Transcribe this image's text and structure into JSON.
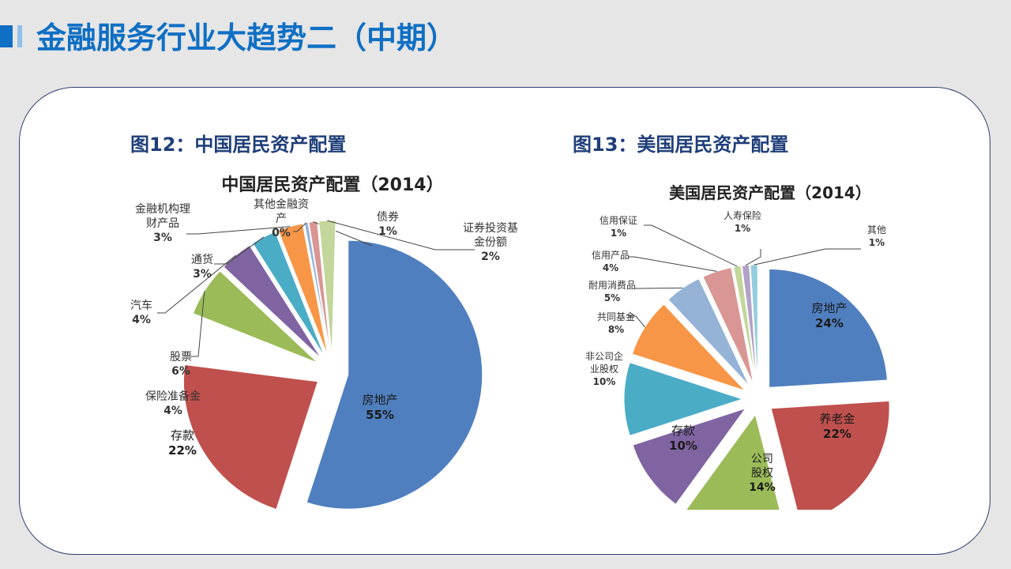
{
  "page": {
    "title": "金融服务行业大趋势二（中期）"
  },
  "figures": [
    {
      "caption": "图12：中国居民资产配置"
    },
    {
      "caption": "图13：美国居民资产配置"
    }
  ],
  "colors": {
    "accent": "#0f6fc4",
    "figure_title": "#1f3e79",
    "card_border": "#33406e"
  },
  "chart_data": [
    {
      "type": "pie",
      "title": "中国居民资产配置（2014）",
      "unit": "%",
      "slices": [
        {
          "label": "房地产",
          "value": 55,
          "color": "#4f7fbf"
        },
        {
          "label": "存款",
          "value": 22,
          "color": "#c0504d"
        },
        {
          "label": "保险准备金",
          "value": 4,
          "color": "#ffffff"
        },
        {
          "label": "股票",
          "value": 6,
          "color": "#9bbb59"
        },
        {
          "label": "汽车",
          "value": 4,
          "color": "#8064a2"
        },
        {
          "label": "通货",
          "value": 3,
          "color": "#4bacc6"
        },
        {
          "label": "金融机构理财产品",
          "value": 3,
          "color": "#f79646"
        },
        {
          "label": "其他金融资产",
          "value": 0,
          "color": "#95b3d7"
        },
        {
          "label": "债券",
          "value": 1,
          "color": "#d99694"
        },
        {
          "label": "证券投资基金份额",
          "value": 2,
          "color": "#c3d69b"
        }
      ]
    },
    {
      "type": "pie",
      "title": "美国居民资产配置（2014）",
      "unit": "%",
      "slices": [
        {
          "label": "房地产",
          "value": 24,
          "color": "#4f7fbf"
        },
        {
          "label": "养老金",
          "value": 22,
          "color": "#c0504d"
        },
        {
          "label": "公司股权",
          "value": 14,
          "color": "#9bbb59"
        },
        {
          "label": "存款",
          "value": 10,
          "color": "#8064a2"
        },
        {
          "label": "非公司企业股权",
          "value": 10,
          "color": "#4bacc6"
        },
        {
          "label": "共同基金",
          "value": 8,
          "color": "#f79646"
        },
        {
          "label": "耐用消费品",
          "value": 5,
          "color": "#95b3d7"
        },
        {
          "label": "信用产品",
          "value": 4,
          "color": "#d99694"
        },
        {
          "label": "信用保证",
          "value": 1,
          "color": "#c3d69b"
        },
        {
          "label": "人寿保险",
          "value": 1,
          "color": "#b3a2c7"
        },
        {
          "label": "其他",
          "value": 1,
          "color": "#93cddd"
        }
      ]
    }
  ]
}
